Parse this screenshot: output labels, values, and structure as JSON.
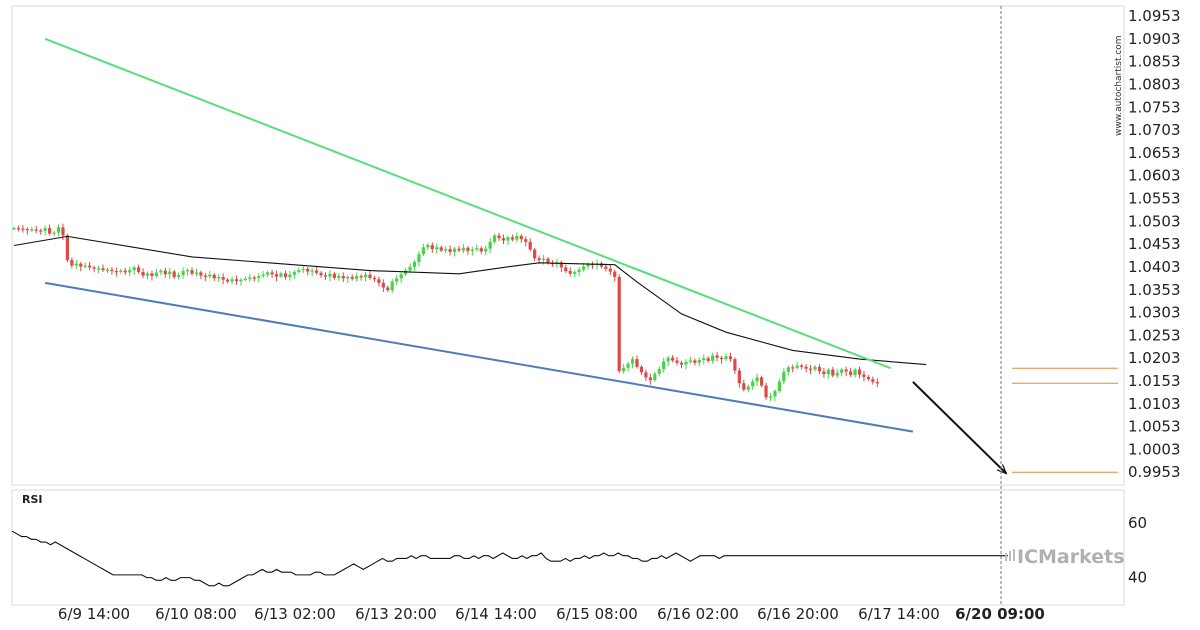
{
  "chart_data": {
    "type": "candlestick",
    "price_panel": {
      "y_ticks": [
        "1.0953",
        "1.0903",
        "1.0853",
        "1.0803",
        "1.0753",
        "1.0703",
        "1.0653",
        "1.0603",
        "1.0553",
        "1.0503",
        "1.0453",
        "1.0403",
        "1.0353",
        "1.0303",
        "1.0253",
        "1.0203",
        "1.0153",
        "1.0103",
        "1.0053",
        "1.0003",
        "0.9953"
      ],
      "ylim": [
        0.9925,
        1.0975
      ],
      "series": [
        {
          "kind": "candles",
          "up_color": "#44d444",
          "down_color": "#e04848",
          "close_path": [
            1.0488,
            1.0487,
            1.0486,
            1.0484,
            1.0485,
            1.0483,
            1.0482,
            1.0488,
            1.0476,
            1.0478,
            1.049,
            1.0472,
            1.0418,
            1.0406,
            1.041,
            1.0404,
            1.0406,
            1.0402,
            1.0399,
            1.04,
            1.0396,
            1.0397,
            1.0394,
            1.0392,
            1.0395,
            1.0391,
            1.0396,
            1.0402,
            1.0392,
            1.0384,
            1.0389,
            1.0383,
            1.0391,
            1.0395,
            1.0387,
            1.0393,
            1.0381,
            1.0385,
            1.0394,
            1.0396,
            1.0388,
            1.0391,
            1.0384,
            1.0382,
            1.0386,
            1.0378,
            1.0381,
            1.0375,
            1.0371,
            1.0376,
            1.0372,
            1.0375,
            1.0377,
            1.038,
            1.0379,
            1.0383,
            1.0386,
            1.0391,
            1.0387,
            1.0382,
            1.0389,
            1.0381,
            1.0386,
            1.0392,
            1.0396,
            1.0399,
            1.0393,
            1.0395,
            1.039,
            1.0385,
            1.0382,
            1.0388,
            1.0379,
            1.0383,
            1.0378,
            1.0381,
            1.0377,
            1.0383,
            1.0381,
            1.0386,
            1.0379,
            1.0376,
            1.0368,
            1.0358,
            1.0352,
            1.0371,
            1.0378,
            1.0387,
            1.0395,
            1.0403,
            1.0414,
            1.0431,
            1.0446,
            1.0451,
            1.0442,
            1.0446,
            1.0439,
            1.0442,
            1.0436,
            1.0443,
            1.0439,
            1.0445,
            1.0438,
            1.0441,
            1.0444,
            1.0437,
            1.0443,
            1.0458,
            1.0472,
            1.0466,
            1.0461,
            1.0468,
            1.0463,
            1.0471,
            1.0464,
            1.0458,
            1.0441,
            1.0422,
            1.0418,
            1.0421,
            1.0412,
            1.0409,
            1.0413,
            1.0402,
            1.0394,
            1.0388,
            1.0392,
            1.0397,
            1.0404,
            1.0409,
            1.0407,
            1.0411,
            1.0404,
            1.0399,
            1.0393,
            1.0381,
            1.0175,
            1.0182,
            1.0191,
            1.0201,
            1.0184,
            1.0172,
            1.0161,
            1.0155,
            1.0169,
            1.0179,
            1.0196,
            1.0204,
            1.0198,
            1.0193,
            1.0189,
            1.0195,
            1.0198,
            1.0193,
            1.0199,
            1.0203,
            1.0197,
            1.0209,
            1.0204,
            1.0201,
            1.0207,
            1.0201,
            1.0176,
            1.0148,
            1.0134,
            1.0141,
            1.0152,
            1.0161,
            1.0143,
            1.0117,
            1.0119,
            1.0131,
            1.0152,
            1.0173,
            1.0183,
            1.0182,
            1.0187,
            1.0184,
            1.018,
            1.0178,
            1.0184,
            1.0174,
            1.0168,
            1.0178,
            1.0165,
            1.0171,
            1.0178,
            1.0174,
            1.0166,
            1.0178,
            1.0167,
            1.0162,
            1.0157,
            1.0151,
            1.0148
          ]
        },
        {
          "kind": "moving-average",
          "color": "#111111",
          "points": [
            [
              0,
              1.045
            ],
            [
              12,
              1.047
            ],
            [
              40,
              1.0425
            ],
            [
              80,
              1.0395
            ],
            [
              100,
              1.0388
            ],
            [
              110,
              1.0402
            ],
            [
              118,
              1.0412
            ],
            [
              135,
              1.0408
            ],
            [
              140,
              1.037
            ],
            [
              150,
              1.03
            ],
            [
              160,
              1.026
            ],
            [
              175,
              1.022
            ],
            [
              190,
              1.0201
            ],
            [
              205,
              1.0189
            ]
          ]
        },
        {
          "kind": "resistance-line",
          "color": "#55e07a",
          "points": [
            [
              7,
              1.0903
            ],
            [
              197,
              1.0181
            ]
          ]
        },
        {
          "kind": "support-line",
          "color": "#4f7bb8",
          "points": [
            [
              7,
              1.0368
            ],
            [
              202,
              1.0042
            ]
          ]
        },
        {
          "kind": "forecast-arrow",
          "color": "#111111",
          "points": [
            [
              202,
              1.0151
            ],
            [
              223,
              0.995
            ]
          ]
        }
      ],
      "horizontal_levels": [
        {
          "value": 1.0181,
          "color": "#e08a3c"
        },
        {
          "value": 1.0148,
          "color": "#e08a3c"
        },
        {
          "value": 0.9953,
          "color": "#e08a3c"
        }
      ]
    },
    "rsi_panel": {
      "title": "RSI",
      "y_ticks": [
        "60",
        "40"
      ],
      "ylim": [
        30,
        72
      ],
      "values": [
        57,
        56,
        55,
        55,
        54,
        54,
        53,
        53,
        52,
        53,
        52,
        51,
        50,
        49,
        48,
        47,
        46,
        45,
        44,
        43,
        42,
        41,
        41,
        41,
        41,
        41,
        41,
        41,
        40,
        40,
        39,
        39,
        40,
        39,
        39,
        40,
        40,
        40,
        39,
        39,
        38,
        37,
        37,
        38,
        37,
        37,
        38,
        39,
        40,
        41,
        41,
        42,
        43,
        42,
        42,
        43,
        42,
        42,
        42,
        41,
        41,
        41,
        41,
        42,
        42,
        41,
        41,
        41,
        42,
        43,
        44,
        45,
        44,
        43,
        44,
        45,
        46,
        47,
        46,
        46,
        47,
        47,
        47,
        48,
        47,
        48,
        48,
        47,
        47,
        47,
        47,
        47,
        48,
        48,
        47,
        47,
        48,
        47,
        48,
        48,
        47,
        48,
        49,
        48,
        47,
        47,
        48,
        47,
        48,
        48,
        49,
        47,
        46,
        46,
        46,
        47,
        46,
        47,
        47,
        48,
        47,
        48,
        48,
        49,
        48,
        48,
        49,
        48,
        48,
        47,
        47,
        46,
        46,
        47,
        47,
        48,
        47,
        48,
        49,
        48,
        47,
        46,
        47,
        48,
        48,
        48,
        48,
        47,
        48,
        48,
        48,
        48,
        48,
        48,
        48,
        48,
        48,
        48,
        48,
        48,
        48,
        48,
        48,
        48,
        48,
        48,
        48,
        48,
        48,
        48,
        48,
        48,
        48,
        48,
        48,
        48,
        48,
        48,
        48,
        48,
        48,
        48,
        48,
        48,
        48,
        48,
        48,
        48,
        48,
        48,
        48,
        48,
        48,
        48,
        48,
        48,
        48,
        48,
        48,
        48,
        48,
        48,
        48,
        48,
        48,
        48,
        48,
        48
      ]
    },
    "x_ticks": [
      "6/9 14:00",
      "6/10 08:00",
      "6/13 02:00",
      "6/13 20:00",
      "6/14 14:00",
      "6/15 08:00",
      "6/16 02:00",
      "6/16 20:00",
      "6/17 14:00",
      "6/20 09:00"
    ],
    "current_x_label": "6/20 09:00",
    "grid": false
  },
  "watermark": "www.autochartist.com",
  "brand": "ICMarkets"
}
